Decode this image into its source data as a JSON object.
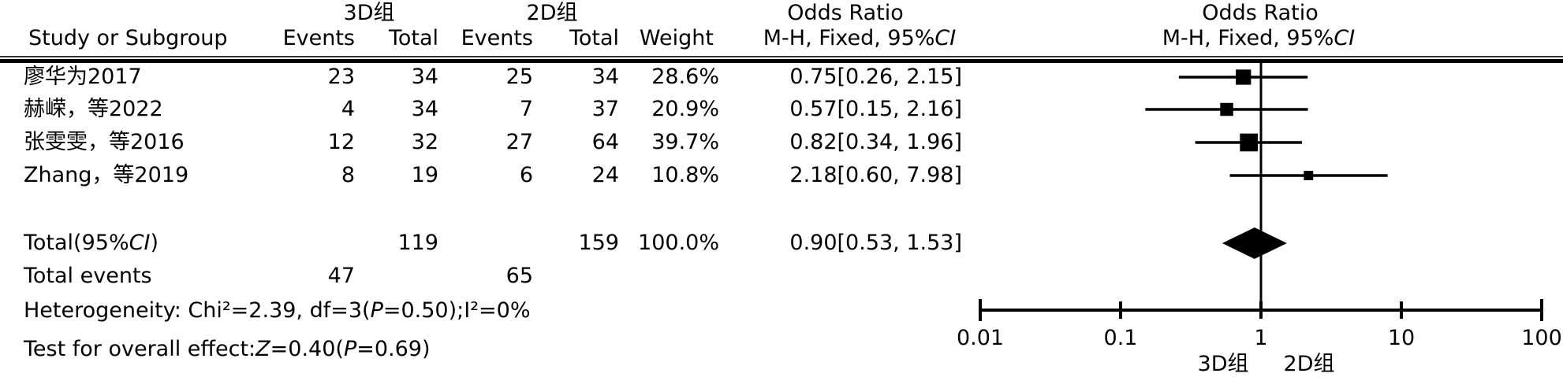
{
  "table": {
    "header": {
      "study": "Study or Subgroup",
      "group_3d": "3D组",
      "group_2d": "2D组",
      "events": "Events",
      "total": "Total",
      "weight": "Weight",
      "or_title": "Odds Ratio",
      "method_prefix": "M-H, Fixed, 95%",
      "ci_italic": "CI"
    },
    "rows": [
      {
        "study": "廖华为2017",
        "e3d": "23",
        "t3d": "34",
        "e2d": "25",
        "t2d": "34",
        "weight": "28.6%",
        "or": "0.75[0.26, 2.15]"
      },
      {
        "study": "赫嵘，等2022",
        "e3d": "4",
        "t3d": "34",
        "e2d": "7",
        "t2d": "37",
        "weight": "20.9%",
        "or": "0.57[0.15, 2.16]"
      },
      {
        "study": "张雯雯，等2016",
        "e3d": "12",
        "t3d": "32",
        "e2d": "27",
        "t2d": "64",
        "weight": "39.7%",
        "or": "0.82[0.34, 1.96]"
      },
      {
        "study": "Zhang，等2019",
        "e3d": "8",
        "t3d": "19",
        "e2d": "6",
        "t2d": "24",
        "weight": "10.8%",
        "or": "2.18[0.60, 7.98]"
      }
    ],
    "total_row": {
      "label_prefix": "Total(95%",
      "label_ci": "CI",
      "label_suffix": ")",
      "t3d": "119",
      "t2d": "159",
      "weight": "100.0%",
      "or": "0.90[0.53, 1.53]"
    },
    "total_events": {
      "label": "Total events",
      "e3d": "47",
      "e2d": "65"
    },
    "heterogeneity": {
      "prefix": "Heterogeneity: Chi²=2.39, df=3(",
      "p": "P",
      "suffix": "=0.50);I²=0%"
    },
    "overall_effect": {
      "prefix": "Test for overall effect:",
      "z": "Z",
      "mid": "=0.40(",
      "p": "P",
      "suffix": "=0.69)"
    }
  },
  "chart_data": {
    "type": "forest",
    "scale": "log10",
    "title": "Odds Ratio",
    "method": "M-H, Fixed, 95%CI",
    "axis_ticks": [
      0.01,
      0.1,
      1,
      10,
      100
    ],
    "axis_labels": [
      "0.01",
      "0.1",
      "1",
      "10",
      "100"
    ],
    "null_line": 1,
    "favors_left_label": "3D组",
    "favors_right_label": "2D组",
    "studies": [
      {
        "name": "廖华为2017",
        "or": 0.75,
        "ci_low": 0.26,
        "ci_high": 2.15,
        "weight_pct": 28.6
      },
      {
        "name": "赫嵘，等2022",
        "or": 0.57,
        "ci_low": 0.15,
        "ci_high": 2.16,
        "weight_pct": 20.9
      },
      {
        "name": "张雯雯，等2016",
        "or": 0.82,
        "ci_low": 0.34,
        "ci_high": 1.96,
        "weight_pct": 39.7
      },
      {
        "name": "Zhang，等2019",
        "or": 2.18,
        "ci_low": 0.6,
        "ci_high": 7.98,
        "weight_pct": 10.8
      }
    ],
    "total": {
      "or": 0.9,
      "ci_low": 0.53,
      "ci_high": 1.53,
      "events_3d": 47,
      "total_3d": 119,
      "events_2d": 65,
      "total_2d": 159
    }
  },
  "colors": {
    "ink": "#000000",
    "background": "#ffffff"
  }
}
